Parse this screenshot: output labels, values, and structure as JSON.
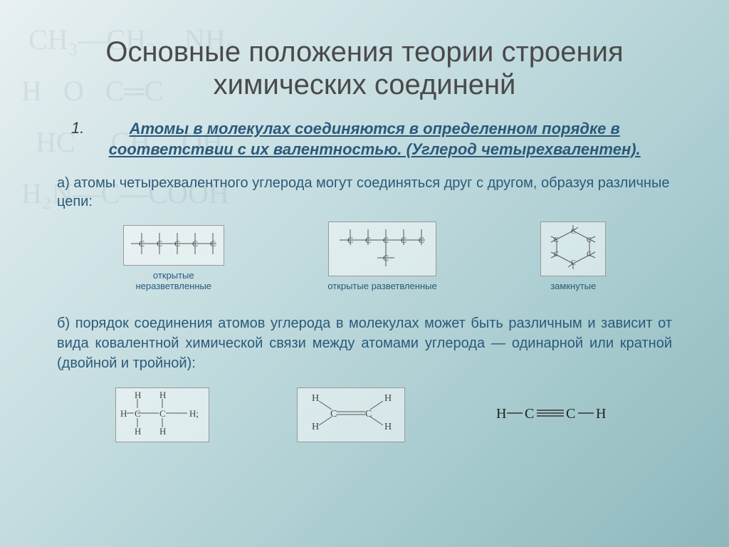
{
  "title": "Основные положения теории строения химических соединенй",
  "point_number": "1.",
  "subtitle": "Атомы в молекулах соединяются в определенном порядке в соответствии с их валентностью. (Углерод четырехвалентен).",
  "para_a": "а) атомы четырехвалентного углерода могут соединяться друг с другом, образуя различные цепи:",
  "chains": [
    {
      "label": "открытые\nнеразветвленные",
      "type": "linear",
      "w": 140,
      "h": 50
    },
    {
      "label": "открытые разветвленные",
      "type": "branched",
      "w": 150,
      "h": 70
    },
    {
      "label": "замкнутые",
      "type": "cyclic",
      "w": 90,
      "h": 70
    }
  ],
  "para_b": "б) порядок соединения атомов углерода в молекулах может быть различным и зависит от вида ковалентной химической связи между атомами углерода — одинарной или кратной (двойной и тройной):",
  "bonds": [
    {
      "type": "single",
      "w": 130,
      "h": 70
    },
    {
      "type": "double",
      "w": 150,
      "h": 70
    },
    {
      "type": "triple",
      "w": 170,
      "h": 30
    }
  ],
  "colors": {
    "title": "#4a4a4a",
    "body": "#2a5a7a",
    "border": "#999999",
    "svg_stroke": "#555555",
    "svg_text": "#444444"
  },
  "fonts": {
    "title_size": 40,
    "subtitle_size": 22,
    "body_size": 20,
    "label_size": 13
  }
}
